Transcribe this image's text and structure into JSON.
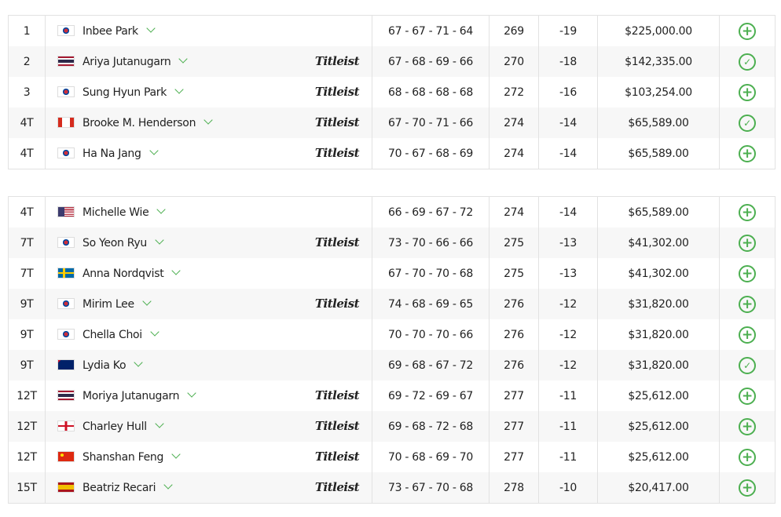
{
  "colors": {
    "accent": "#4caf50",
    "row_alt": "#f7f7f7"
  },
  "sponsor_logo": "Titleist",
  "tables": [
    {
      "rows": [
        {
          "pos": "1",
          "flag": "south-korea",
          "name": "Inbee Park",
          "titleist": false,
          "scores": "67 - 67 - 71 - 64",
          "total": "269",
          "to_par": "-19",
          "money": "$225,000.00",
          "action": "plus"
        },
        {
          "pos": "2",
          "flag": "thailand",
          "name": "Ariya Jutanugarn",
          "titleist": true,
          "scores": "67 - 68 - 69 - 66",
          "total": "270",
          "to_par": "-18",
          "money": "$142,335.00",
          "action": "check"
        },
        {
          "pos": "3",
          "flag": "south-korea",
          "name": "Sung Hyun Park",
          "titleist": true,
          "scores": "68 - 68 - 68 - 68",
          "total": "272",
          "to_par": "-16",
          "money": "$103,254.00",
          "action": "plus"
        },
        {
          "pos": "4T",
          "flag": "canada",
          "name": "Brooke M. Henderson",
          "titleist": true,
          "scores": "67 - 70 - 71 - 66",
          "total": "274",
          "to_par": "-14",
          "money": "$65,589.00",
          "action": "check"
        },
        {
          "pos": "4T",
          "flag": "south-korea",
          "name": "Ha Na Jang",
          "titleist": true,
          "scores": "70 - 67 - 68 - 69",
          "total": "274",
          "to_par": "-14",
          "money": "$65,589.00",
          "action": "plus"
        }
      ]
    },
    {
      "rows": [
        {
          "pos": "4T",
          "flag": "usa",
          "name": "Michelle Wie",
          "titleist": false,
          "scores": "66 - 69 - 67 - 72",
          "total": "274",
          "to_par": "-14",
          "money": "$65,589.00",
          "action": "plus"
        },
        {
          "pos": "7T",
          "flag": "south-korea",
          "name": "So Yeon Ryu",
          "titleist": true,
          "scores": "73 - 70 - 66 - 66",
          "total": "275",
          "to_par": "-13",
          "money": "$41,302.00",
          "action": "plus"
        },
        {
          "pos": "7T",
          "flag": "sweden",
          "name": "Anna Nordqvist",
          "titleist": false,
          "scores": "67 - 70 - 70 - 68",
          "total": "275",
          "to_par": "-13",
          "money": "$41,302.00",
          "action": "plus"
        },
        {
          "pos": "9T",
          "flag": "south-korea",
          "name": "Mirim Lee",
          "titleist": true,
          "scores": "74 - 68 - 69 - 65",
          "total": "276",
          "to_par": "-12",
          "money": "$31,820.00",
          "action": "plus"
        },
        {
          "pos": "9T",
          "flag": "south-korea",
          "name": "Chella Choi",
          "titleist": false,
          "scores": "70 - 70 - 70 - 66",
          "total": "276",
          "to_par": "-12",
          "money": "$31,820.00",
          "action": "plus"
        },
        {
          "pos": "9T",
          "flag": "new-zealand",
          "name": "Lydia Ko",
          "titleist": false,
          "scores": "69 - 68 - 67 - 72",
          "total": "276",
          "to_par": "-12",
          "money": "$31,820.00",
          "action": "check"
        },
        {
          "pos": "12T",
          "flag": "thailand",
          "name": "Moriya Jutanugarn",
          "titleist": true,
          "scores": "69 - 72 - 69 - 67",
          "total": "277",
          "to_par": "-11",
          "money": "$25,612.00",
          "action": "plus"
        },
        {
          "pos": "12T",
          "flag": "england",
          "name": "Charley Hull",
          "titleist": true,
          "scores": "69 - 68 - 72 - 68",
          "total": "277",
          "to_par": "-11",
          "money": "$25,612.00",
          "action": "plus"
        },
        {
          "pos": "12T",
          "flag": "china",
          "name": "Shanshan Feng",
          "titleist": true,
          "scores": "70 - 68 - 69 - 70",
          "total": "277",
          "to_par": "-11",
          "money": "$25,612.00",
          "action": "plus"
        },
        {
          "pos": "15T",
          "flag": "spain",
          "name": "Beatriz Recari",
          "titleist": true,
          "scores": "73 - 67 - 70 - 68",
          "total": "278",
          "to_par": "-10",
          "money": "$20,417.00",
          "action": "plus"
        }
      ]
    }
  ]
}
